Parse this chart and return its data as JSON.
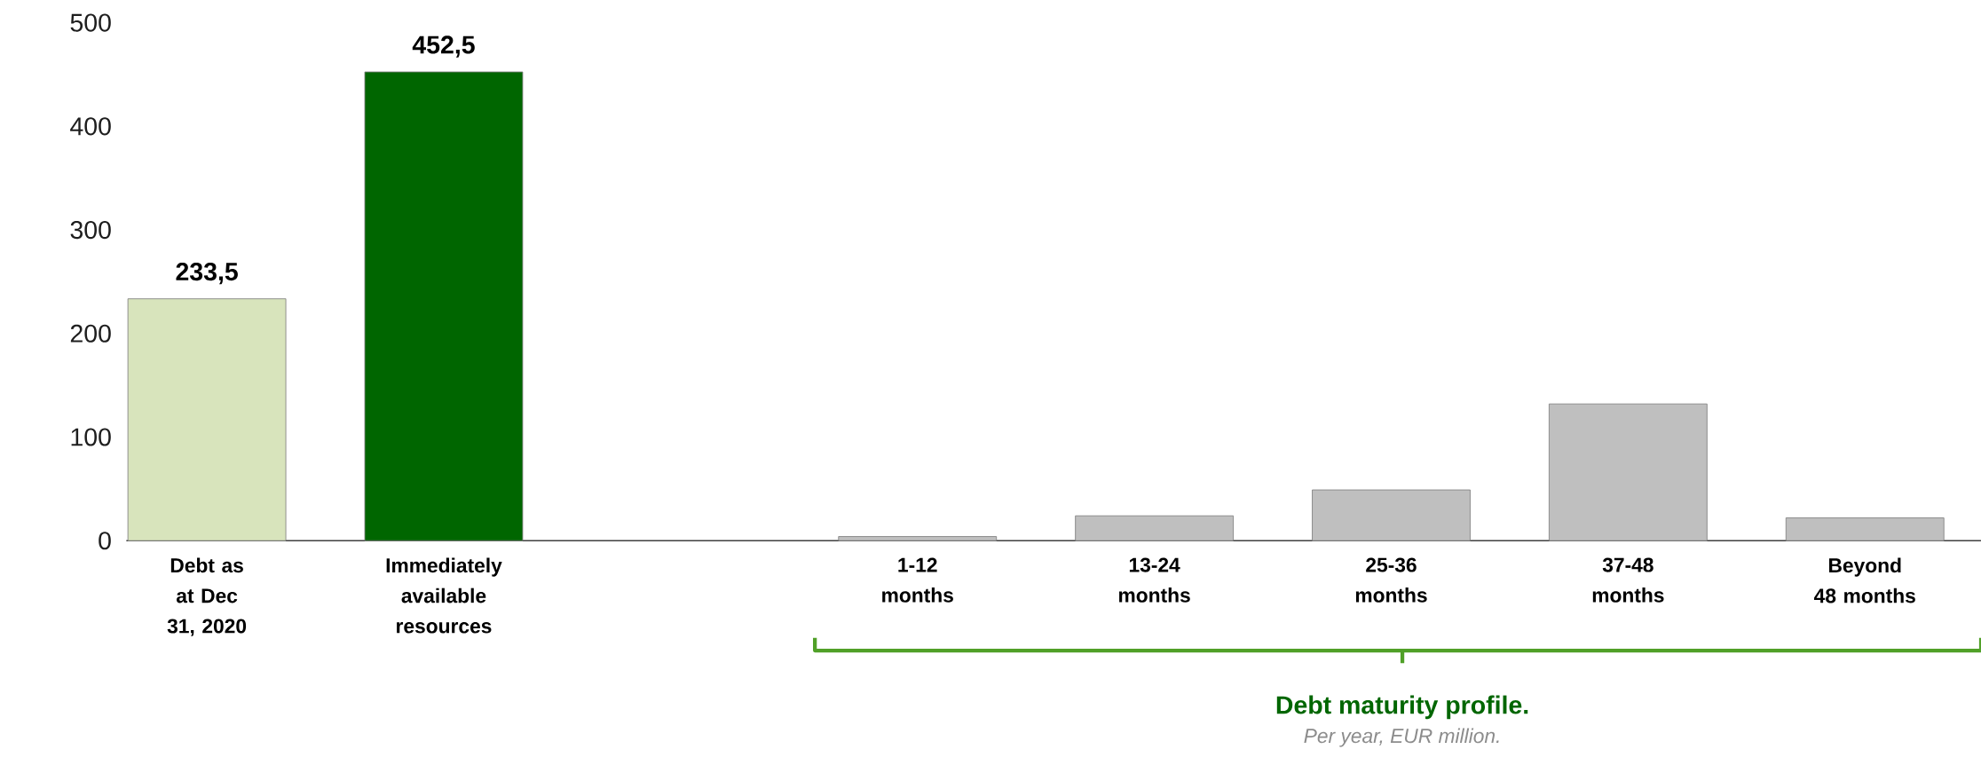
{
  "chart_data": {
    "type": "bar",
    "categories": [
      "Debt as at Dec 31, 2020",
      "Immediately available resources",
      null,
      "1-12 months",
      "13-24 months",
      "25-36 months",
      "37-48 months",
      "Beyond 48 months"
    ],
    "values": [
      233.5,
      452.5,
      null,
      4,
      24,
      49,
      132,
      22
    ],
    "colors": [
      "#d8e4bc",
      "#006600",
      "#bfbfbf",
      "#bfbfbf",
      "#bfbfbf",
      "#bfbfbf",
      "#bfbfbf",
      "#bfbfbf"
    ],
    "value_labels": [
      "233,5",
      "452,5",
      null,
      null,
      null,
      null,
      null,
      null
    ],
    "ylim": [
      0,
      500
    ],
    "yticks": [
      0,
      100,
      200,
      300,
      400,
      500
    ],
    "annotations": [
      "Debt maturity profile.",
      "Per year, EUR million."
    ]
  }
}
